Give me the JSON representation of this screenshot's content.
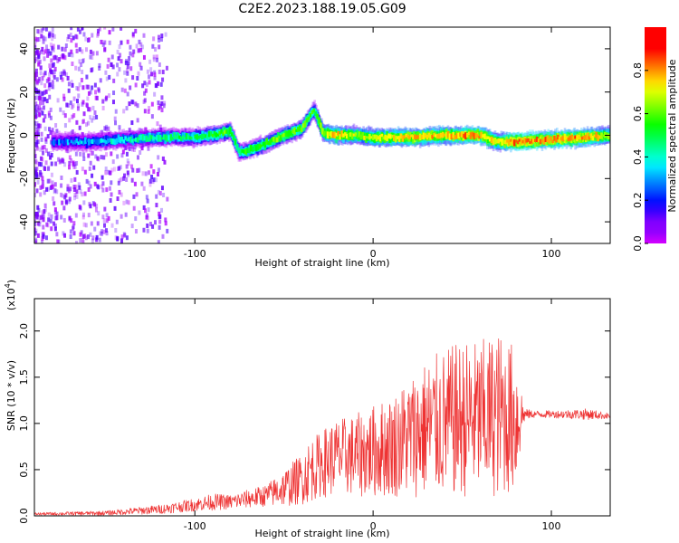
{
  "chart_data": [
    {
      "type": "heatmap",
      "title": "C2E2.2023.188.19.05.G09",
      "xlabel": "Height of straight line (km)",
      "ylabel": "Frequency (Hz)",
      "xlim": [
        -190,
        133
      ],
      "ylim": [
        -50,
        50
      ],
      "xticks": [
        -100,
        0,
        100
      ],
      "xtick_labels": [
        "-100",
        "0",
        "100"
      ],
      "yticks": [
        -40,
        -20,
        0,
        20,
        40
      ],
      "ytick_labels": [
        "-40",
        "-20",
        "0",
        "20",
        "40"
      ],
      "colorscale": "rainbow",
      "colorbar": {
        "label": "Normalized spectral amplitude",
        "range": [
          0,
          1
        ],
        "ticks": [
          0,
          0.2,
          0.4,
          0.6,
          0.8
        ],
        "tick_labels": [
          "0.0",
          "0.2",
          "0.4",
          "0.6",
          "0.8"
        ]
      },
      "ridge": {
        "x": [
          -180,
          -160,
          -140,
          -120,
          -100,
          -90,
          -80,
          -75,
          -70,
          -60,
          -50,
          -40,
          -33,
          -28,
          -20,
          -10,
          0,
          20,
          40,
          60,
          70,
          80,
          100,
          120,
          133
        ],
        "frequency": [
          -3,
          -3,
          -2,
          -1,
          -1,
          0,
          2,
          -8,
          -7,
          -4,
          0,
          3,
          12,
          1,
          0,
          0,
          -1,
          -1,
          0,
          0,
          -3,
          -3,
          -2,
          -1,
          0
        ],
        "amplitude": [
          0.2,
          0.25,
          0.35,
          0.4,
          0.45,
          0.5,
          0.5,
          0.45,
          0.5,
          0.5,
          0.55,
          0.55,
          0.5,
          0.6,
          0.7,
          0.6,
          0.65,
          0.7,
          0.7,
          0.75,
          0.65,
          0.8,
          0.75,
          0.75,
          0.6
        ]
      }
    },
    {
      "type": "line",
      "title": "",
      "xlabel": "Height of straight line (km)",
      "ylabel": "SNR (10 * v/v)",
      "y_multiplier_label": "(x10",
      "y_multiplier_exponent": "4",
      "xlim": [
        -190,
        133
      ],
      "ylim": [
        0,
        23500
      ],
      "xticks": [
        -100,
        0,
        100
      ],
      "xtick_labels": [
        "-100",
        "0",
        "100"
      ],
      "yticks": [
        0,
        5000,
        10000,
        15000,
        20000
      ],
      "ytick_labels": [
        "0.0",
        "0.5",
        "1.0",
        "1.5",
        "2.0"
      ],
      "series_color": "#ee3333",
      "envelope": {
        "x": [
          -190,
          -150,
          -120,
          -100,
          -90,
          -80,
          -60,
          -50,
          -40,
          -35,
          -30,
          -25,
          -20,
          -10,
          0,
          10,
          20,
          30,
          40,
          50,
          60,
          70,
          80,
          85,
          90,
          100,
          110,
          120,
          133
        ],
        "mean": [
          200,
          300,
          700,
          1200,
          1500,
          1500,
          2200,
          3000,
          4000,
          5000,
          5500,
          6000,
          6500,
          6500,
          7000,
          7500,
          8500,
          9500,
          10000,
          10500,
          10500,
          11000,
          10500,
          11000,
          11000,
          11000,
          11000,
          11000,
          10800
        ],
        "spread": [
          150,
          250,
          500,
          700,
          900,
          800,
          1200,
          2000,
          2800,
          3500,
          3500,
          4000,
          4000,
          4500,
          5000,
          5500,
          6500,
          7500,
          8000,
          8500,
          8500,
          9000,
          8000,
          600,
          400,
          400,
          500,
          600,
          300
        ]
      }
    }
  ]
}
